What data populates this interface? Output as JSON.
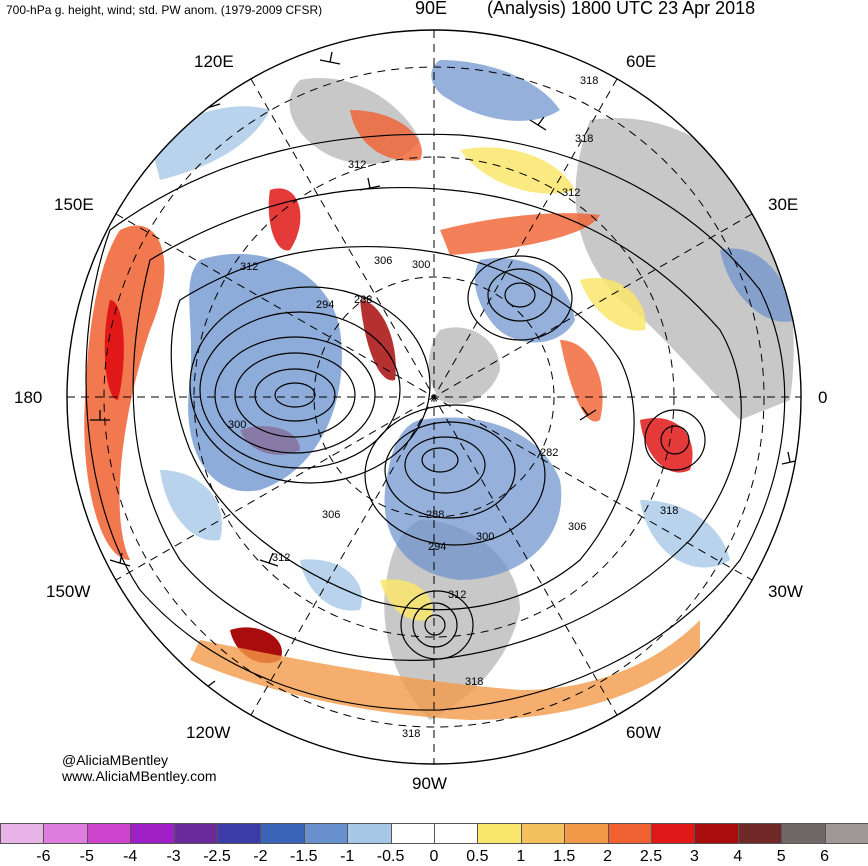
{
  "header": {
    "left_title": "700-hPa g. height, wind; std. PW anom. (1979-2009 CFSR)",
    "top_longitude": "90E",
    "right_title": "(Analysis) 1800 UTC 23 Apr 2018"
  },
  "longitude_labels": {
    "lon_120e": "120E",
    "lon_60e": "60E",
    "lon_150e": "150E",
    "lon_30e": "30E",
    "lon_180": "180",
    "lon_0": "0",
    "lon_150w": "150W",
    "lon_30w": "30W",
    "lon_120w": "120W",
    "lon_60w": "60W",
    "lon_90w": "90W"
  },
  "contour_labels": [
    "318",
    "318",
    "312",
    "312",
    "312",
    "306",
    "300",
    "294",
    "288",
    "300",
    "282",
    "306",
    "318",
    "306",
    "288",
    "294",
    "300",
    "312",
    "312",
    "318",
    "318"
  ],
  "credits": {
    "handle": "@AliciaMBentley",
    "website": "www.AliciaMBentley.com"
  },
  "legend": {
    "labels": [
      "-6",
      "-5",
      "-4",
      "-3",
      "-2.5",
      "-2",
      "-1.5",
      "-1",
      "-0.5",
      "0",
      "0.5",
      "1",
      "1.5",
      "2",
      "2.5",
      "3",
      "4",
      "5",
      "6"
    ],
    "colors": [
      "#e8b4e8",
      "#e07ee0",
      "#cc44cc",
      "#a020c8",
      "#6a2a9a",
      "#3c3ca8",
      "#3a64b8",
      "#6890cc",
      "#a6c8e6",
      "#ffffff",
      "#ffffff",
      "#fae66c",
      "#f5c060",
      "#f29a48",
      "#f06030",
      "#e01818",
      "#a80c0c",
      "#702828",
      "#706868",
      "#a09898"
    ]
  },
  "map": {
    "ocean_color": "#ffffff",
    "land_color": "#c8c8c8",
    "contour_color": "#000000"
  }
}
